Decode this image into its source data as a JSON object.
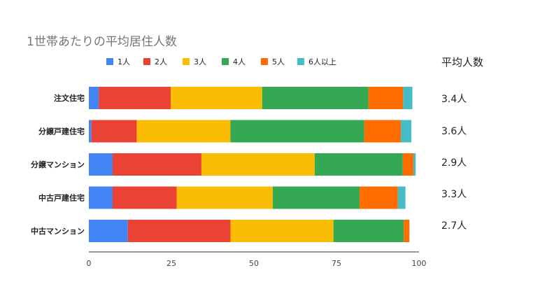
{
  "chart_data": {
    "type": "bar",
    "orientation": "horizontal",
    "stacked": true,
    "title": "1世帯あたりの平均居住人数",
    "categories": [
      "注文住宅",
      "分譲戸建住宅",
      "分譲マンション",
      "中古戸建住宅",
      "中古マンション"
    ],
    "series": [
      {
        "name": "1人",
        "color": "#4285f4",
        "values": [
          3.0,
          0.8,
          7.2,
          7.2,
          11.8
        ]
      },
      {
        "name": "2人",
        "color": "#ea4335",
        "values": [
          21.8,
          13.7,
          26.9,
          19.4,
          31.1
        ]
      },
      {
        "name": "3人",
        "color": "#fbbc04",
        "values": [
          27.7,
          28.4,
          34.3,
          29.1,
          31.2
        ]
      },
      {
        "name": "4人",
        "color": "#34a853",
        "values": [
          32.2,
          40.5,
          26.7,
          26.3,
          21.3
        ]
      },
      {
        "name": "5人",
        "color": "#ff6d01",
        "values": [
          10.5,
          11.1,
          3.2,
          11.6,
          1.7
        ]
      },
      {
        "name": "6人以上",
        "color": "#46bdc6",
        "values": [
          2.8,
          3.2,
          0.7,
          2.3,
          0.0
        ]
      }
    ],
    "xlim": [
      0,
      100
    ],
    "xticks": [
      0,
      25,
      50,
      75,
      100
    ],
    "legend_position": "top",
    "grid": false
  },
  "side_panel": {
    "header": "平均人数",
    "values": [
      "3.4人",
      "3.6人",
      "2.9人",
      "3.3人",
      "2.7人"
    ]
  }
}
